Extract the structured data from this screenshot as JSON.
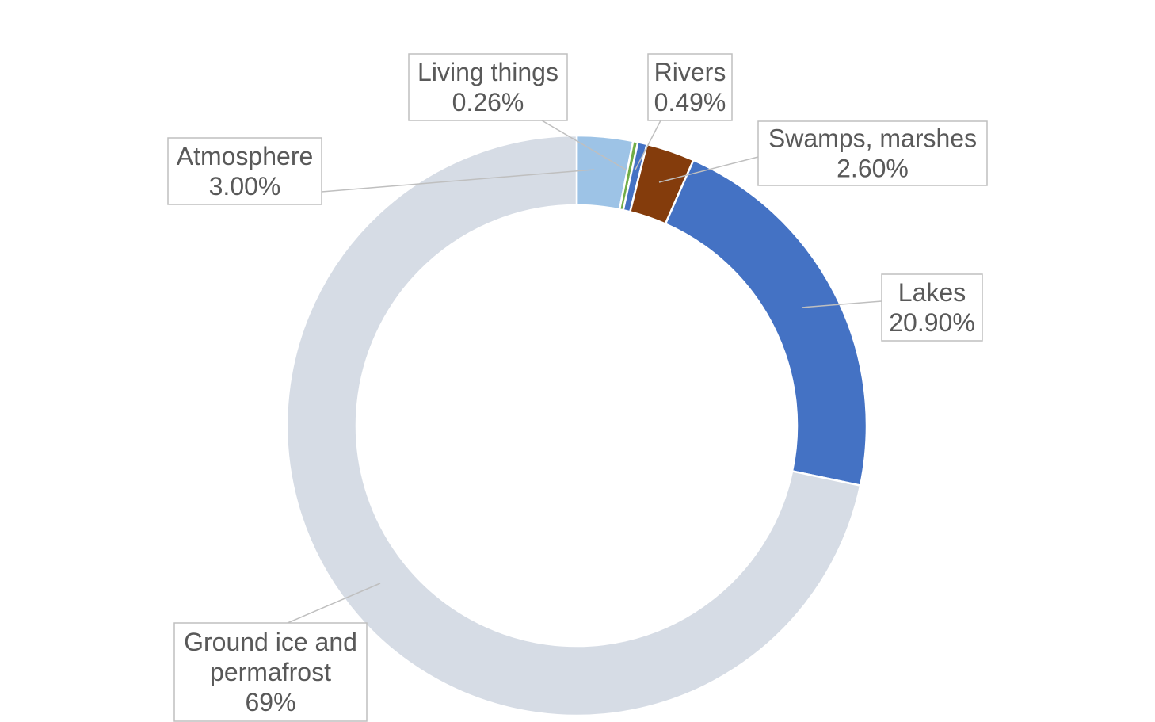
{
  "chart_data": {
    "type": "pie",
    "variant": "donut",
    "slices": [
      {
        "label": "Atmosphere",
        "value_label": "3.00%",
        "value": 3.0,
        "color": "#9dc3e6"
      },
      {
        "label": "Living things",
        "value_label": "0.26%",
        "value": 0.26,
        "color": "#70ad47"
      },
      {
        "label": "Rivers",
        "value_label": "0.49%",
        "value": 0.49,
        "color": "#4472c4"
      },
      {
        "label": "Swamps, marshes",
        "value_label": "2.60%",
        "value": 2.6,
        "color": "#843c0c"
      },
      {
        "label": "Lakes",
        "value_label": "20.90%",
        "value": 20.9,
        "color": "#4472c4"
      },
      {
        "label": "Ground ice and permafrost",
        "label_lines": [
          "Ground ice and",
          "permafrost"
        ],
        "value_label": "69%",
        "value": 69.0,
        "color": "#d6dce5"
      }
    ],
    "start_angle_deg": 0,
    "direction": "clockwise",
    "legend": "none",
    "data_labels": "callouts"
  }
}
